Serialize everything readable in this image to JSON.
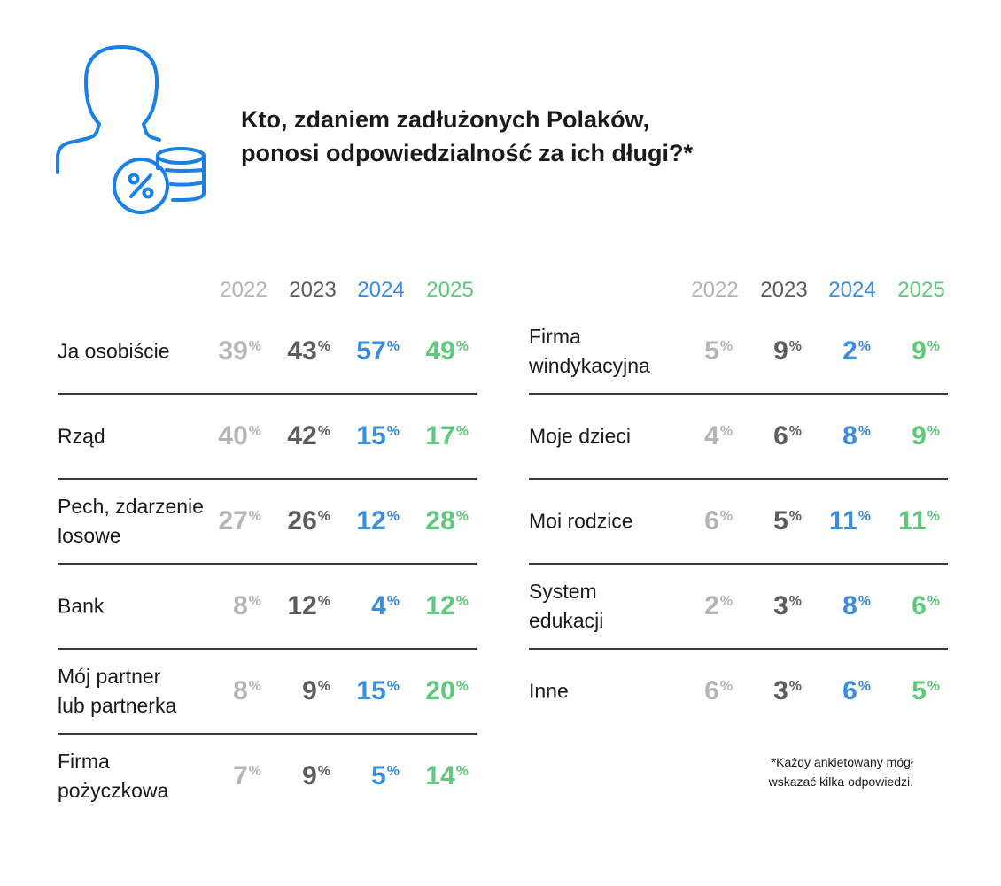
{
  "title": "Kto, zdaniem zadłużonych Polaków,\nponosi odpowiedzialność za ich długi?*",
  "icon": "person-with-percent-coin-stack-icon",
  "colors": {
    "2022": "#b4b4b4",
    "2023": "#5c5c5c",
    "2024": "#3a8ce0",
    "2025": "#5ec97b",
    "icon": "#1a7fe8"
  },
  "footnote": "*Każdy ankietowany mógł\nwskazać kilka odpowiedzi.",
  "chart_data": {
    "type": "table",
    "title": "Kto, zdaniem zadłużonych Polaków, ponosi odpowiedzialność za ich długi?*",
    "unit": "%",
    "years": [
      "2022",
      "2023",
      "2024",
      "2025"
    ],
    "panels": [
      {
        "rows": [
          {
            "label": "Ja osobiście",
            "values": [
              39,
              43,
              57,
              49
            ]
          },
          {
            "label": "Rząd",
            "values": [
              40,
              42,
              15,
              17
            ]
          },
          {
            "label": "Pech, zdarzenie\nlosowe",
            "values": [
              27,
              26,
              12,
              28
            ]
          },
          {
            "label": "Bank",
            "values": [
              8,
              12,
              4,
              12
            ]
          },
          {
            "label": "Mój partner\nlub partnerka",
            "values": [
              8,
              9,
              15,
              20
            ]
          },
          {
            "label": "Firma\n pożyczkowa",
            "values": [
              7,
              9,
              5,
              14
            ]
          }
        ]
      },
      {
        "rows": [
          {
            "label": "Firma\nwindykacyjna",
            "values": [
              5,
              9,
              2,
              9
            ]
          },
          {
            "label": "Moje dzieci",
            "values": [
              4,
              6,
              8,
              9
            ]
          },
          {
            "label": "Moi rodzice",
            "values": [
              6,
              5,
              11,
              11
            ]
          },
          {
            "label": "System\nedukacji",
            "values": [
              2,
              3,
              8,
              6
            ]
          },
          {
            "label": "Inne",
            "values": [
              6,
              3,
              6,
              5
            ]
          }
        ]
      }
    ]
  }
}
